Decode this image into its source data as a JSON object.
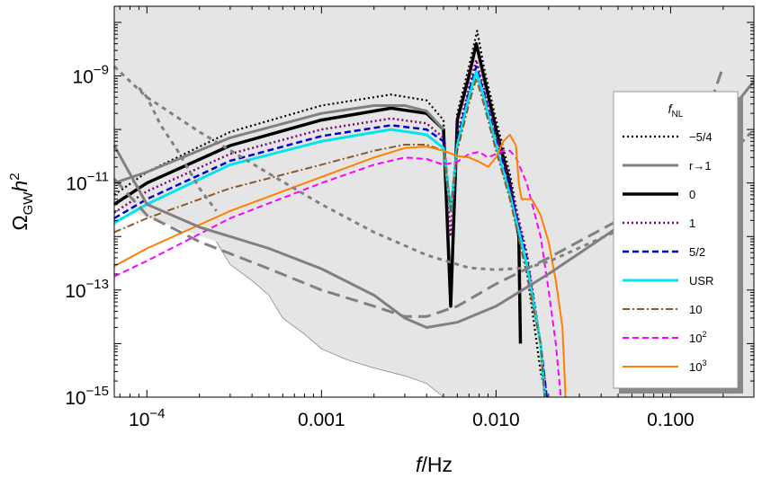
{
  "chart_data": {
    "type": "line",
    "xlabel": "f/Hz",
    "ylabel": "Ω_GW h^2",
    "x_scale": "log",
    "y_scale": "log",
    "xlim": [
      6.5e-05,
      0.3
    ],
    "ylim": [
      1e-15,
      2e-08
    ],
    "x_ticks": [
      {
        "value": 0.0001,
        "base": "10",
        "exp": "−4"
      },
      {
        "value": 0.001,
        "label": "0.001"
      },
      {
        "value": 0.01,
        "label": "0.010"
      },
      {
        "value": 0.1,
        "label": "0.100"
      }
    ],
    "y_ticks": [
      {
        "value": 1e-09,
        "base": "10",
        "exp": "−9"
      },
      {
        "value": 1e-11,
        "base": "10",
        "exp": "−11"
      },
      {
        "value": 1e-13,
        "base": "10",
        "exp": "−13"
      },
      {
        "value": 1e-15,
        "base": "10",
        "exp": "−15"
      }
    ],
    "legend": {
      "title": "f",
      "title_sub": "NL",
      "placement": "right",
      "entries": [
        {
          "label": "−5/4",
          "color": "#000000",
          "dash": "2,3",
          "width": 2.2
        },
        {
          "label": "r→1",
          "color": "#808080",
          "dash": "",
          "width": 3
        },
        {
          "label": "0",
          "color": "#000000",
          "dash": "",
          "width": 3.5
        },
        {
          "label": "1",
          "color": "#800080",
          "dash": "2,3",
          "width": 2.5
        },
        {
          "label": "5/2",
          "color": "#0000cc",
          "dash": "7,4",
          "width": 2.5
        },
        {
          "label": "USR",
          "color": "#00e5ee",
          "dash": "",
          "width": 3
        },
        {
          "label": "10",
          "color": "#8b5a2b",
          "dash": "8,3,2,3",
          "width": 2
        },
        {
          "label": "10",
          "sup": "2",
          "color": "#ff00ff",
          "dash": "7,4",
          "width": 2
        },
        {
          "label": "10",
          "sup": "3",
          "color": "#ff8000",
          "dash": "",
          "width": 2
        }
      ]
    },
    "series": [
      {
        "color": "#000000",
        "dash": "2,3",
        "width": 2.2,
        "points": [
          [
            6.5e-05,
            6e-12
          ],
          [
            0.0001,
            1.6e-11
          ],
          [
            0.0003,
            9e-11
          ],
          [
            0.001,
            2.8e-10
          ],
          [
            0.0025,
            4.5e-10
          ],
          [
            0.004,
            3.5e-10
          ],
          [
            0.005,
            1.5e-10
          ],
          [
            0.0055,
            5e-14
          ],
          [
            0.006,
            2e-10
          ],
          [
            0.007,
            1.5e-09
          ],
          [
            0.0078,
            7e-09
          ],
          [
            0.0085,
            1.5e-09
          ],
          [
            0.01,
            1.5e-10
          ],
          [
            0.012,
            1.5e-11
          ],
          [
            0.014,
            1e-12
          ],
          [
            0.016,
            5e-14
          ],
          [
            0.018,
            3e-15
          ],
          [
            0.0195,
            1e-15
          ]
        ]
      },
      {
        "color": "#000000",
        "dash": "",
        "width": 3.5,
        "points": [
          [
            6.5e-05,
            4e-12
          ],
          [
            0.0001,
            1e-11
          ],
          [
            0.0003,
            5e-11
          ],
          [
            0.001,
            1.5e-10
          ],
          [
            0.0025,
            2.5e-10
          ],
          [
            0.004,
            2e-10
          ],
          [
            0.005,
            1e-10
          ],
          [
            0.0055,
            5e-14
          ],
          [
            0.006,
            1.5e-10
          ],
          [
            0.007,
            1e-09
          ],
          [
            0.0077,
            4e-09
          ],
          [
            0.0085,
            1e-09
          ],
          [
            0.01,
            1e-10
          ],
          [
            0.012,
            1e-11
          ],
          [
            0.0135,
            1e-12
          ],
          [
            0.0138,
            1e-14
          ]
        ]
      },
      {
        "color": "#800080",
        "dash": "2,3",
        "width": 2.5,
        "points": [
          [
            6.5e-05,
            2.8e-12
          ],
          [
            0.0001,
            7e-12
          ],
          [
            0.0003,
            3.5e-11
          ],
          [
            0.001,
            1e-10
          ],
          [
            0.0025,
            1.6e-10
          ],
          [
            0.004,
            1.3e-10
          ],
          [
            0.005,
            7e-11
          ],
          [
            0.0055,
            1e-12
          ],
          [
            0.006,
            8e-11
          ],
          [
            0.007,
            6e-10
          ],
          [
            0.0077,
            2e-09
          ],
          [
            0.0085,
            6e-10
          ],
          [
            0.01,
            8e-11
          ],
          [
            0.012,
            1e-11
          ],
          [
            0.015,
            5e-13
          ],
          [
            0.018,
            1e-14
          ],
          [
            0.0195,
            1e-15
          ]
        ]
      },
      {
        "color": "#0000cc",
        "dash": "7,4",
        "width": 2.5,
        "points": [
          [
            6.5e-05,
            2.2e-12
          ],
          [
            0.0001,
            5e-12
          ],
          [
            0.0003,
            2.6e-11
          ],
          [
            0.001,
            7.5e-11
          ],
          [
            0.0025,
            1.2e-10
          ],
          [
            0.004,
            1e-10
          ],
          [
            0.005,
            6e-11
          ],
          [
            0.0055,
            3e-12
          ],
          [
            0.006,
            6e-11
          ],
          [
            0.007,
            5e-10
          ],
          [
            0.0077,
            1.5e-09
          ],
          [
            0.0085,
            5e-10
          ],
          [
            0.01,
            6e-11
          ],
          [
            0.012,
            8e-12
          ],
          [
            0.015,
            4e-13
          ],
          [
            0.018,
            1e-14
          ],
          [
            0.0195,
            1e-15
          ]
        ]
      },
      {
        "color": "#00e5ee",
        "dash": "",
        "width": 3,
        "points": [
          [
            6.5e-05,
            1.8e-12
          ],
          [
            0.0001,
            4e-12
          ],
          [
            0.0003,
            2.2e-11
          ],
          [
            0.001,
            6e-11
          ],
          [
            0.0025,
            1e-10
          ],
          [
            0.004,
            8e-11
          ],
          [
            0.005,
            4.5e-11
          ],
          [
            0.0055,
            3e-12
          ],
          [
            0.006,
            5e-11
          ],
          [
            0.007,
            4e-10
          ],
          [
            0.0077,
            1.2e-09
          ],
          [
            0.0085,
            4e-10
          ],
          [
            0.01,
            5e-11
          ],
          [
            0.012,
            6e-12
          ],
          [
            0.015,
            3e-13
          ],
          [
            0.018,
            1e-14
          ],
          [
            0.019,
            1e-15
          ]
        ]
      },
      {
        "color": "#8b5a2b",
        "dash": "8,3,2,3",
        "width": 2,
        "points": [
          [
            6.5e-05,
            1.2e-12
          ],
          [
            0.0001,
            2.2e-12
          ],
          [
            0.0003,
            8e-12
          ],
          [
            0.001,
            2.2e-11
          ],
          [
            0.002,
            4e-11
          ],
          [
            0.003,
            5.2e-11
          ],
          [
            0.004,
            5.2e-11
          ],
          [
            0.005,
            4e-11
          ],
          [
            0.0055,
            3e-12
          ],
          [
            0.006,
            4e-11
          ],
          [
            0.007,
            3e-10
          ],
          [
            0.0077,
            9e-10
          ],
          [
            0.0085,
            3e-10
          ],
          [
            0.01,
            4e-11
          ],
          [
            0.012,
            5e-12
          ],
          [
            0.015,
            2e-13
          ],
          [
            0.018,
            1e-14
          ],
          [
            0.019,
            1e-15
          ]
        ]
      },
      {
        "color": "#ff00ff",
        "dash": "7,4",
        "width": 2,
        "points": [
          [
            6.5e-05,
            1.8e-13
          ],
          [
            0.0001,
            3.5e-13
          ],
          [
            0.0003,
            2.2e-12
          ],
          [
            0.001,
            1e-11
          ],
          [
            0.002,
            2.2e-11
          ],
          [
            0.003,
            3e-11
          ],
          [
            0.004,
            2.8e-11
          ],
          [
            0.005,
            2.2e-11
          ],
          [
            0.006,
            2.5e-11
          ],
          [
            0.007,
            3.5e-11
          ],
          [
            0.008,
            3.8e-11
          ],
          [
            0.009,
            3e-11
          ],
          [
            0.01,
            3.5e-11
          ],
          [
            0.011,
            4e-11
          ],
          [
            0.012,
            4e-11
          ],
          [
            0.013,
            3e-11
          ],
          [
            0.015,
            1e-11
          ],
          [
            0.018,
            1e-12
          ],
          [
            0.02,
            1e-13
          ],
          [
            0.022,
            1e-14
          ],
          [
            0.0235,
            1e-15
          ]
        ]
      },
      {
        "color": "#ff8000",
        "dash": "",
        "width": 2,
        "points": [
          [
            6.5e-05,
            2.8e-13
          ],
          [
            0.0001,
            6e-13
          ],
          [
            0.0003,
            3e-12
          ],
          [
            0.001,
            1.3e-11
          ],
          [
            0.002,
            3e-11
          ],
          [
            0.003,
            4.5e-11
          ],
          [
            0.004,
            4.8e-11
          ],
          [
            0.005,
            4e-11
          ],
          [
            0.006,
            3.2e-11
          ],
          [
            0.007,
            3e-11
          ],
          [
            0.008,
            2.5e-11
          ],
          [
            0.009,
            2e-11
          ],
          [
            0.01,
            3e-11
          ],
          [
            0.011,
            6e-11
          ],
          [
            0.012,
            8e-11
          ],
          [
            0.013,
            5e-11
          ],
          [
            0.0135,
            1e-11
          ],
          [
            0.014,
            5e-12
          ],
          [
            0.016,
            5e-12
          ],
          [
            0.018,
            2.5e-12
          ],
          [
            0.02,
            8e-13
          ],
          [
            0.022,
            1.5e-13
          ],
          [
            0.024,
            2e-14
          ],
          [
            0.025,
            1e-15
          ]
        ]
      },
      {
        "color": "#808080",
        "dash": "",
        "width": 3,
        "points": [
          [
            6.5e-05,
            1e-11
          ],
          [
            0.0001,
            1.6e-11
          ],
          [
            0.0003,
            7e-11
          ],
          [
            0.001,
            2e-10
          ],
          [
            0.002,
            2.8e-10
          ],
          [
            0.003,
            2.8e-10
          ],
          [
            0.004,
            2.2e-10
          ],
          [
            0.005,
            1e-10
          ]
        ]
      },
      {
        "color": "#808080",
        "dash": "",
        "width": 3,
        "points": [
          [
            6.5e-05,
            5e-11
          ],
          [
            0.0001,
            4e-12
          ],
          [
            0.0002,
            1.5e-12
          ],
          [
            0.0005,
            6e-13
          ],
          [
            0.001,
            2.5e-13
          ],
          [
            0.002,
            8e-14
          ],
          [
            0.003,
            3e-14
          ],
          [
            0.004,
            2e-14
          ],
          [
            0.006,
            2.5e-14
          ],
          [
            0.01,
            5e-14
          ],
          [
            0.02,
            2e-13
          ],
          [
            0.05,
            1.5e-12
          ],
          [
            0.1,
            1.5e-11
          ],
          [
            0.2,
            1.5e-10
          ],
          [
            0.3,
            8e-10
          ]
        ]
      },
      {
        "color": "#808080",
        "dash": "14,7",
        "width": 3,
        "points": [
          [
            6.5e-05,
            1.2e-11
          ],
          [
            0.0001,
            2.5e-12
          ],
          [
            0.0002,
            8e-13
          ],
          [
            0.0005,
            2.5e-13
          ],
          [
            0.001,
            1e-13
          ],
          [
            0.002,
            5e-14
          ],
          [
            0.003,
            3.2e-14
          ],
          [
            0.004,
            3.2e-14
          ],
          [
            0.006,
            5e-14
          ],
          [
            0.01,
            1.3e-13
          ],
          [
            0.02,
            4e-13
          ],
          [
            0.05,
            2e-12
          ],
          [
            0.1,
            1.2e-11
          ],
          [
            0.15,
            1e-10
          ],
          [
            0.2,
            1.5e-09
          ]
        ]
      },
      {
        "color": "#808080",
        "dash": "5,5",
        "width": 3,
        "points": [
          [
            6.5e-05,
            1.5e-09
          ],
          [
            0.0001,
            4e-10
          ],
          [
            0.0002,
            9e-11
          ],
          [
            0.0005,
            1.5e-11
          ],
          [
            0.001,
            4e-12
          ],
          [
            0.002,
            1.2e-12
          ],
          [
            0.004,
            4.5e-13
          ],
          [
            0.007,
            2.6e-13
          ],
          [
            0.01,
            2.4e-13
          ],
          [
            0.015,
            2.6e-13
          ],
          [
            0.02,
            3.4e-13
          ],
          [
            0.05,
            1.3e-12
          ],
          [
            0.1,
            5e-12
          ],
          [
            0.2,
            2.5e-11
          ],
          [
            0.3,
            1e-10
          ]
        ]
      },
      {
        "color": "#808080",
        "dash": "5,5",
        "width": 3,
        "points": [
          [
            9e-05,
            6e-10
          ],
          [
            0.0001,
            4e-10
          ],
          [
            0.00012,
            1.2e-10
          ],
          [
            0.00015,
            4e-11
          ],
          [
            0.0002,
            8e-12
          ],
          [
            0.00025,
            3e-12
          ]
        ]
      }
    ]
  }
}
